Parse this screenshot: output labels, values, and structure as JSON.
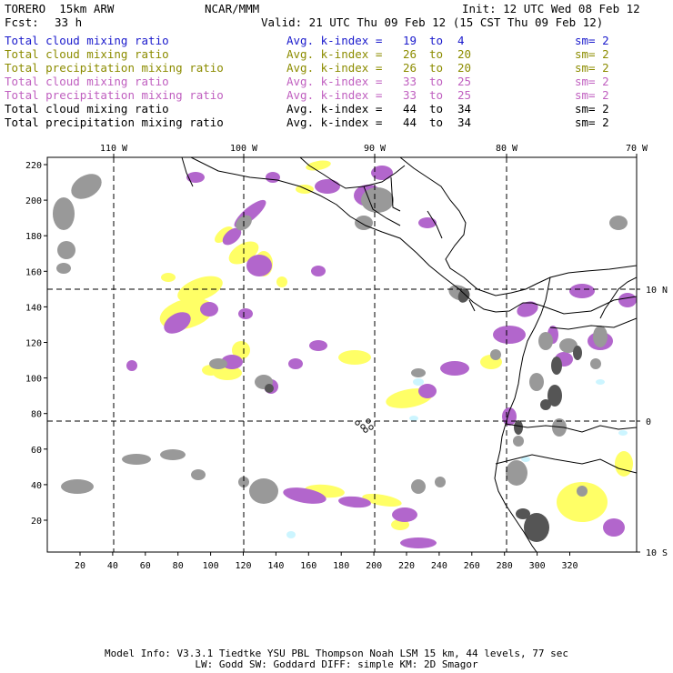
{
  "header": {
    "model": "TORERO  15km ARW",
    "org": "NCAR/MMM",
    "init": "Init: 12 UTC Wed 08 Feb 12",
    "fcst_label": "Fcst:",
    "fcst_value": "33 h",
    "valid": "Valid: 21 UTC Thu 09 Feb 12 (15 CST Thu 09 Feb 12)"
  },
  "legend": [
    {
      "field": "Total cloud mixing ratio",
      "stat": "Avg. k-index =",
      "from": "19",
      "to_word": "to",
      "to": "4",
      "sm": "sm= 2",
      "color": "#1a1acc"
    },
    {
      "field": "Total cloud mixing ratio",
      "stat": "Avg. k-index =",
      "from": "26",
      "to_word": "to",
      "to": "20",
      "sm": "sm= 2",
      "color": "#8c8c00"
    },
    {
      "field": "Total precipitation mixing ratio",
      "stat": "Avg. k-index =",
      "from": "26",
      "to_word": "to",
      "to": "20",
      "sm": "sm= 2",
      "color": "#8c8c00"
    },
    {
      "field": "Total cloud mixing ratio",
      "stat": "Avg. k-index =",
      "from": "33",
      "to_word": "to",
      "to": "25",
      "sm": "sm= 2",
      "color": "#c060c0"
    },
    {
      "field": "Total precipitation mixing ratio",
      "stat": "Avg. k-index =",
      "from": "33",
      "to_word": "to",
      "to": "25",
      "sm": "sm= 2",
      "color": "#c060c0"
    },
    {
      "field": "Total cloud mixing ratio",
      "stat": "Avg. k-index =",
      "from": "44",
      "to_word": "to",
      "to": "34",
      "sm": "sm= 2",
      "color": "#000000"
    },
    {
      "field": "Total precipitation mixing ratio",
      "stat": "Avg. k-index =",
      "from": "44",
      "to_word": "to",
      "to": "34",
      "sm": "sm= 2",
      "color": "#000000"
    }
  ],
  "map": {
    "lon_labels": [
      "110 W",
      "100 W",
      "90 W",
      "80 W",
      "70 W"
    ],
    "lat_labels": [
      "10 N",
      "0",
      "10 S"
    ],
    "x_ticks": [
      "20",
      "40",
      "60",
      "80",
      "100",
      "120",
      "140",
      "160",
      "180",
      "200",
      "220",
      "240",
      "260",
      "280",
      "300",
      "320"
    ],
    "y_ticks": [
      "220",
      "200",
      "180",
      "160",
      "140",
      "120",
      "100",
      "80",
      "60",
      "40",
      "20"
    ],
    "colors": {
      "gray": "#999999",
      "dark": "#555555",
      "yellow": "#ffff66",
      "magenta": "#b266cc",
      "cyan": "#ccf5ff",
      "coast": "#000000"
    }
  },
  "footer": {
    "line1": "Model Info: V3.3.1   Tiedtke YSU PBL  Thompson    Noah LSM  15 km,   44 levels,   77 sec",
    "line2": "LW: Godd SW: Goddard DIFF: simple KM: 2D Smagor"
  }
}
